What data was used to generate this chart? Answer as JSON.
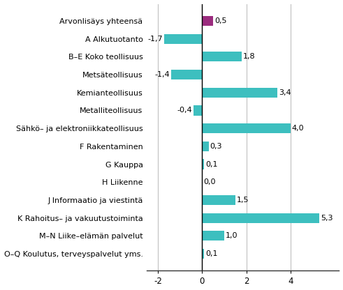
{
  "categories": [
    "Arvonlisäys yhteensä",
    "A Alkutuotanto",
    "B–E Koko teollisuus",
    "Metsäteollisuus",
    "Kemianteollisuus",
    "Metalliteollisuus",
    "Sähkö– ja elektroniikkateollisuus",
    "F Rakentaminen",
    "G Kauppa",
    "H Liikenne",
    "J Informaatio ja viestintä",
    "K Rahoitus– ja vakuutustoiminta",
    "M–N Liike–elämän palvelut",
    "O–Q Koulutus, terveyspalvelut yms."
  ],
  "values": [
    0.5,
    -1.7,
    1.8,
    -1.4,
    3.4,
    -0.4,
    4.0,
    0.3,
    0.1,
    0.0,
    1.5,
    5.3,
    1.0,
    0.1
  ],
  "bar_colors": [
    "#9b2c7e",
    "#3dbfbf",
    "#3dbfbf",
    "#3dbfbf",
    "#3dbfbf",
    "#3dbfbf",
    "#3dbfbf",
    "#3dbfbf",
    "#3dbfbf",
    "#3dbfbf",
    "#3dbfbf",
    "#3dbfbf",
    "#3dbfbf",
    "#3dbfbf"
  ],
  "xlim": [
    -2.5,
    6.2
  ],
  "xticks": [
    -2,
    0,
    2,
    4
  ],
  "background_color": "#ffffff",
  "grid_color": "#c0c0c0",
  "label_fontsize": 8.0,
  "tick_fontsize": 8.5,
  "value_fontsize": 8.0,
  "bar_height": 0.55
}
